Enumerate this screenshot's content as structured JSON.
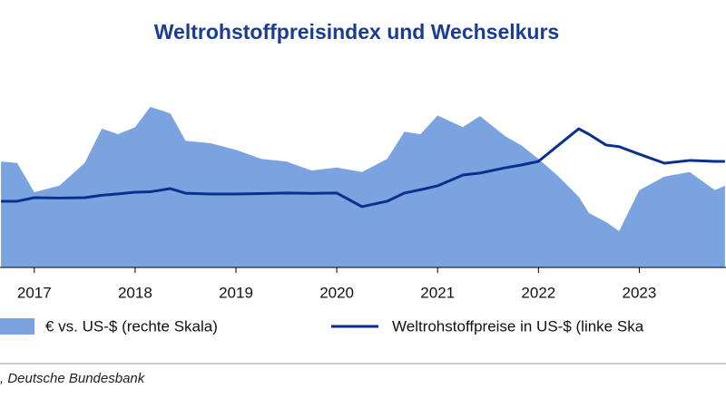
{
  "chart_data": {
    "type": "line-area",
    "title": "Weltrohstoffpreisindex und Wechselkurs",
    "source": ", Deutsche Bundesbank",
    "x": [
      2016.67,
      2016.83,
      2017.0,
      2017.25,
      2017.5,
      2017.67,
      2017.83,
      2018.0,
      2018.15,
      2018.35,
      2018.5,
      2018.75,
      2019.0,
      2019.25,
      2019.5,
      2019.75,
      2020.0,
      2020.25,
      2020.5,
      2020.67,
      2020.83,
      2021.0,
      2021.25,
      2021.42,
      2021.67,
      2021.83,
      2022.0,
      2022.2,
      2022.4,
      2022.5,
      2022.67,
      2022.8,
      2023.0,
      2023.25,
      2023.5,
      2023.75,
      2023.85
    ],
    "series": [
      {
        "name": "€ vs. US-$ (rechte Skala)",
        "color": "#7ba3e0",
        "axis": "y2",
        "style": "area",
        "values": [
          1.13,
          1.127,
          1.069,
          1.082,
          1.127,
          1.195,
          1.184,
          1.198,
          1.238,
          1.225,
          1.171,
          1.166,
          1.153,
          1.135,
          1.13,
          1.112,
          1.118,
          1.109,
          1.135,
          1.189,
          1.184,
          1.221,
          1.198,
          1.22,
          1.18,
          1.162,
          1.135,
          1.1,
          1.06,
          1.028,
          1.01,
          0.992,
          1.073,
          1.1,
          1.109,
          1.073,
          1.082
        ]
      },
      {
        "name": "Weltrohstoffpreise in US-$ (linke Ska",
        "color": "#0a2f8f",
        "axis": "y",
        "style": "line",
        "values": [
          87.7,
          87.7,
          90.3,
          90.0,
          90.3,
          92.0,
          93.0,
          94.2,
          94.5,
          96.8,
          93.5,
          92.9,
          92.9,
          93.2,
          93.6,
          93.4,
          93.6,
          83.8,
          87.7,
          93.6,
          96.0,
          98.8,
          106.6,
          108.0,
          111.8,
          113.8,
          116.4,
          128.2,
          139.9,
          136.0,
          128.2,
          127.0,
          121.6,
          115.1,
          117.1,
          116.4,
          116.4
        ]
      }
    ],
    "xlim": [
      2016.66,
      2023.86
    ],
    "xticks": [
      2017,
      2018,
      2019,
      2020,
      2021,
      2022,
      2023
    ],
    "ylim": [
      40,
      200
    ],
    "y2lim": [
      0.92,
      1.36
    ]
  }
}
